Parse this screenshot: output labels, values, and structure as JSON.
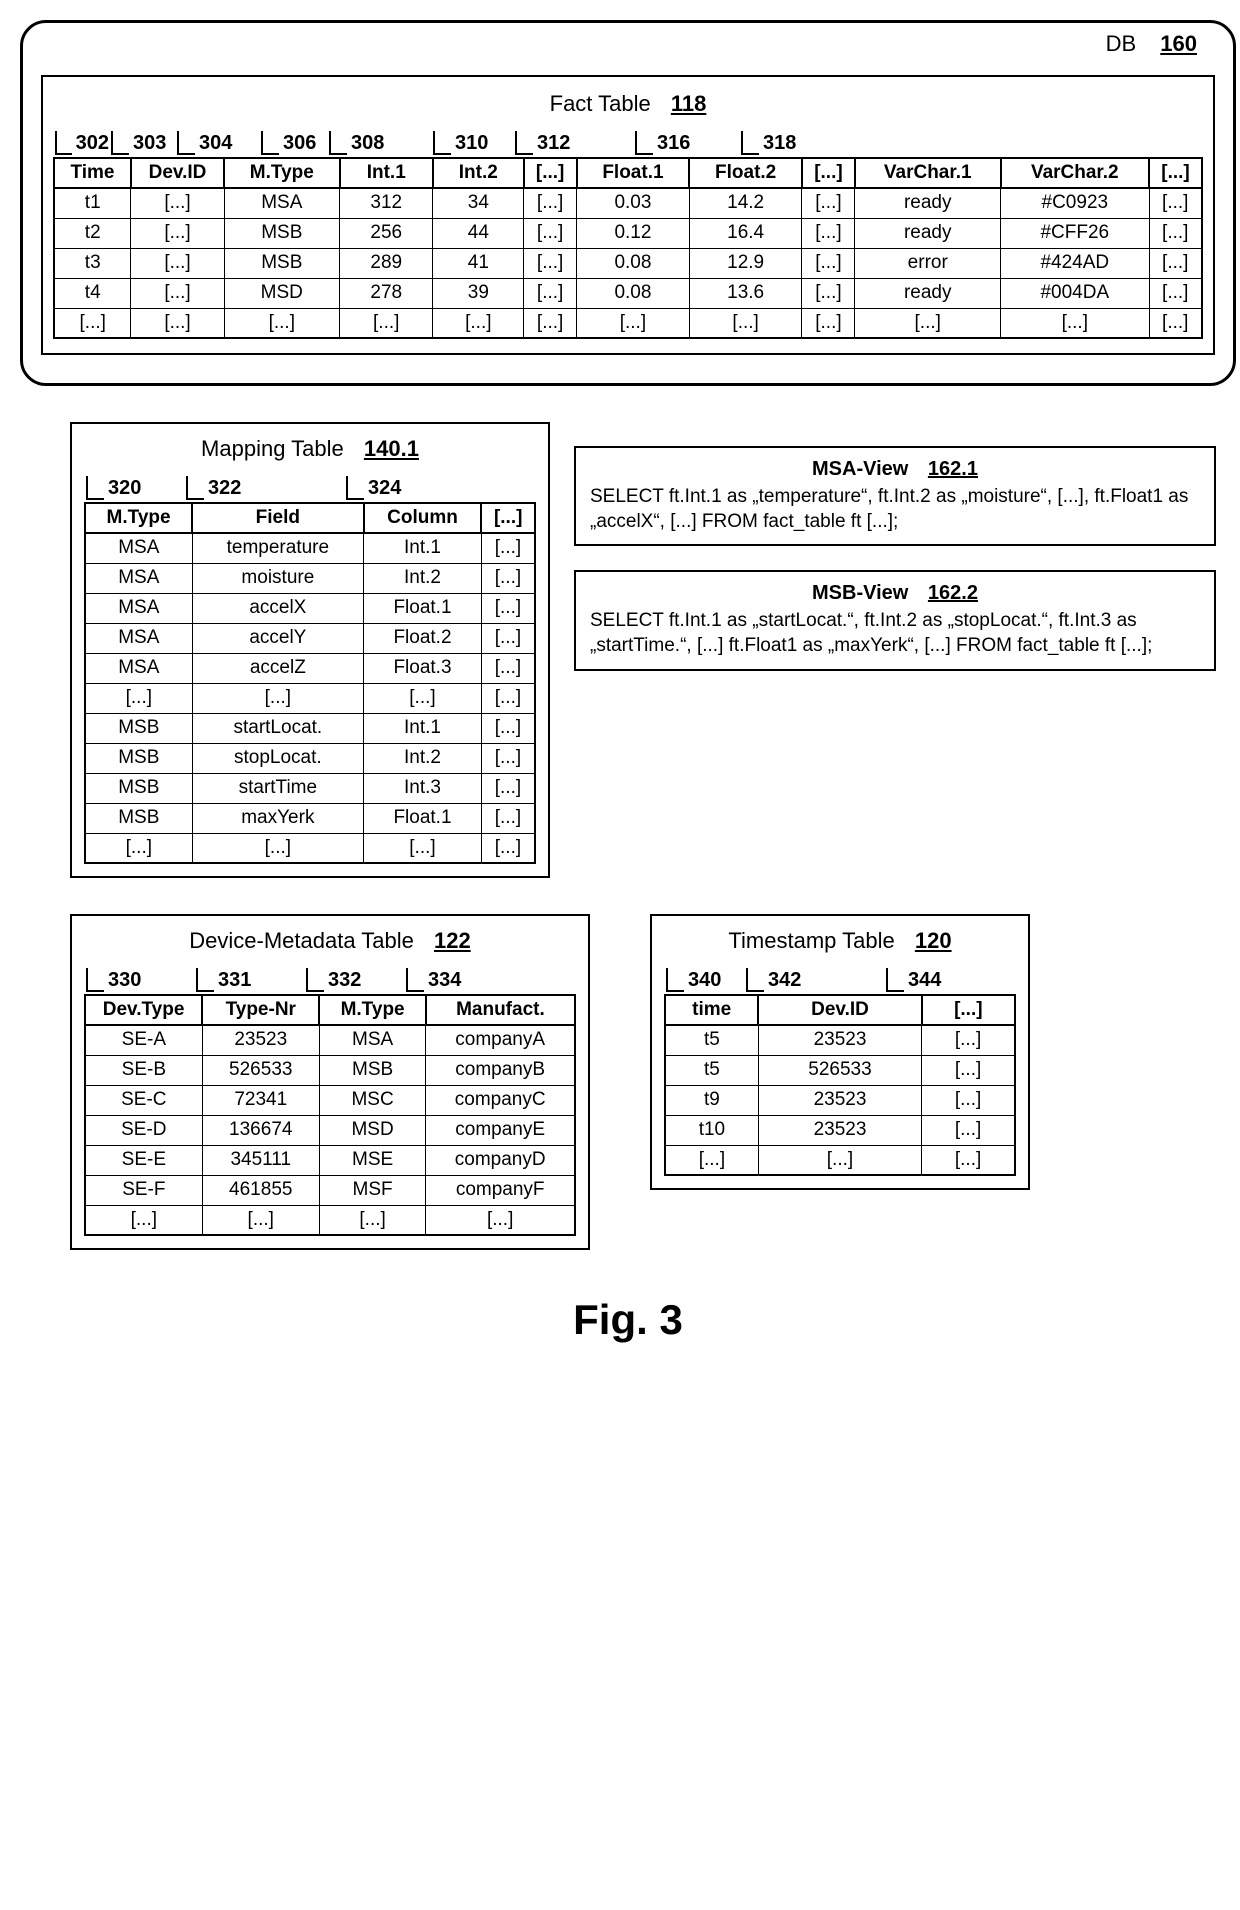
{
  "db": {
    "label": "DB",
    "ref": "160"
  },
  "fact": {
    "title": "Fact Table",
    "ref": "118",
    "col_refs": [
      "302",
      "303",
      "304",
      "306",
      "308",
      "",
      "310",
      "312",
      "",
      "316",
      "318",
      ""
    ],
    "headers": [
      "Time",
      "Dev.ID",
      "M.Type",
      "Int.1",
      "Int.2",
      "[...]",
      "Float.1",
      "Float.2",
      "[...]",
      "VarChar.1",
      "VarChar.2",
      "[...]"
    ],
    "rows": [
      [
        "t1",
        "[...]",
        "MSA",
        "312",
        "34",
        "[...]",
        "0.03",
        "14.2",
        "[...]",
        "ready",
        "#C0923",
        "[...]"
      ],
      [
        "t2",
        "[...]",
        "MSB",
        "256",
        "44",
        "[...]",
        "0.12",
        "16.4",
        "[...]",
        "ready",
        "#CFF26",
        "[...]"
      ],
      [
        "t3",
        "[...]",
        "MSB",
        "289",
        "41",
        "[...]",
        "0.08",
        "12.9",
        "[...]",
        "error",
        "#424AD",
        "[...]"
      ],
      [
        "t4",
        "[...]",
        "MSD",
        "278",
        "39",
        "[...]",
        "0.08",
        "13.6",
        "[...]",
        "ready",
        "#004DA",
        "[...]"
      ],
      [
        "[...]",
        "[...]",
        "[...]",
        "[...]",
        "[...]",
        "[...]",
        "[...]",
        "[...]",
        "[...]",
        "[...]",
        "[...]",
        "[...]"
      ]
    ],
    "col_widths": [
      "56",
      "66",
      "84",
      "68",
      "66",
      "38",
      "82",
      "82",
      "38",
      "106",
      "108",
      "38"
    ]
  },
  "mapping": {
    "title": "Mapping Table",
    "ref": "140.1",
    "col_refs": [
      "320",
      "322",
      "324",
      ""
    ],
    "headers": [
      "M.Type",
      "Field",
      "Column",
      "[...]"
    ],
    "rows": [
      [
        "MSA",
        "temperature",
        "Int.1",
        "[...]"
      ],
      [
        "MSA",
        "moisture",
        "Int.2",
        "[...]"
      ],
      [
        "MSA",
        "accelX",
        "Float.1",
        "[...]"
      ],
      [
        "MSA",
        "accelY",
        "Float.2",
        "[...]"
      ],
      [
        "MSA",
        "accelZ",
        "Float.3",
        "[...]"
      ],
      [
        "[...]",
        "[...]",
        "[...]",
        "[...]"
      ],
      [
        "MSB",
        "startLocat.",
        "Int.1",
        "[...]"
      ],
      [
        "MSB",
        "stopLocat.",
        "Int.2",
        "[...]"
      ],
      [
        "MSB",
        "startTime",
        "Int.3",
        "[...]"
      ],
      [
        "MSB",
        "maxYerk",
        "Float.1",
        "[...]"
      ],
      [
        "[...]",
        "[...]",
        "[...]",
        "[...]"
      ]
    ],
    "col_widths": [
      "100",
      "160",
      "110",
      "50"
    ]
  },
  "views": {
    "msa": {
      "title": "MSA-View",
      "ref": "162.1",
      "text": "SELECT ft.Int.1 as „temperature“, ft.Int.2 as „moisture“, [...], ft.Float1 as „accelX“, [...] FROM fact_table ft [...];"
    },
    "msb": {
      "title": "MSB-View",
      "ref": "162.2",
      "text": "SELECT ft.Int.1 as „startLocat.“, ft.Int.2 as „stopLocat.“, ft.Int.3 as „startTime.“, [...] ft.Float1 as „maxYerk“, [...] FROM fact_table ft [...];"
    }
  },
  "devmeta": {
    "title": "Device-Metadata Table",
    "ref": "122",
    "col_refs": [
      "330",
      "331",
      "332",
      "334"
    ],
    "headers": [
      "Dev.Type",
      "Type-Nr",
      "M.Type",
      "Manufact."
    ],
    "rows": [
      [
        "SE-A",
        "23523",
        "MSA",
        "companyA"
      ],
      [
        "SE-B",
        "526533",
        "MSB",
        "companyB"
      ],
      [
        "SE-C",
        "72341",
        "MSC",
        "companyC"
      ],
      [
        "SE-D",
        "136674",
        "MSD",
        "companyE"
      ],
      [
        "SE-E",
        "345111",
        "MSE",
        "companyD"
      ],
      [
        "SE-F",
        "461855",
        "MSF",
        "companyF"
      ],
      [
        "[...]",
        "[...]",
        "[...]",
        "[...]"
      ]
    ],
    "col_widths": [
      "110",
      "110",
      "100",
      "140"
    ]
  },
  "timestamp": {
    "title": "Timestamp Table",
    "ref": "120",
    "col_refs": [
      "340",
      "342",
      "344"
    ],
    "headers": [
      "time",
      "Dev.ID",
      "[...]"
    ],
    "rows": [
      [
        "t5",
        "23523",
        "[...]"
      ],
      [
        "t5",
        "526533",
        "[...]"
      ],
      [
        "t9",
        "23523",
        "[...]"
      ],
      [
        "t10",
        "23523",
        "[...]"
      ],
      [
        "[...]",
        "[...]",
        "[...]"
      ]
    ],
    "col_widths": [
      "80",
      "140",
      "80"
    ]
  },
  "figure": "Fig. 3"
}
